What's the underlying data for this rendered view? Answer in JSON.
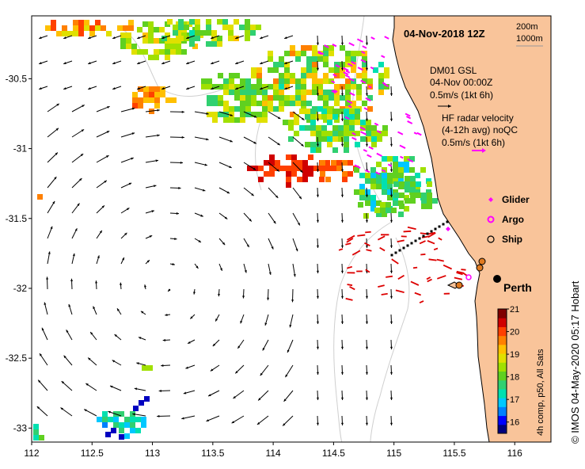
{
  "header": {
    "date_label": "04-Nov-2018 12Z"
  },
  "depth_legend": {
    "contour_1": "200m",
    "contour_2": "1000m"
  },
  "model_info": {
    "line1": "DM01 GSL",
    "line2": "04-Nov 00:00Z",
    "line3": "0.5m/s (1kt 6h)"
  },
  "hf_info": {
    "line1": "HF radar velocity",
    "line2": "(4-12h avg) noQC",
    "line3": "0.5m/s (1kt 6h)"
  },
  "platform_legend": {
    "items": [
      {
        "label": "Glider",
        "symbol": "diamond",
        "color": "#ff00ff"
      },
      {
        "label": "Argo",
        "symbol": "hollow-circle",
        "color": "#ff00ff"
      },
      {
        "label": "Ship",
        "symbol": "circle",
        "color": "#000000"
      }
    ]
  },
  "city_label": "Perth",
  "colorbar": {
    "title": "4h comp, p50, All Sats",
    "ticks": [
      "21",
      "20",
      "19",
      "18",
      "17",
      "16"
    ],
    "min": 15.5,
    "max": 21,
    "colors": [
      "#00007f",
      "#0000ff",
      "#0080ff",
      "#00c8ff",
      "#00e0b0",
      "#30d070",
      "#60d020",
      "#a0e000",
      "#e0e000",
      "#ffc000",
      "#ff8000",
      "#ff4000",
      "#d00000",
      "#800000"
    ]
  },
  "credit": "© IMOS 04-May-2020 05:17 Hobart",
  "axes": {
    "x_ticks": [
      "112",
      "112.5",
      "113",
      "113.5",
      "114",
      "114.5",
      "115",
      "115.5",
      "116"
    ],
    "x_values": [
      112,
      112.5,
      113,
      113.5,
      114,
      114.5,
      115,
      115.5,
      116
    ],
    "y_ticks": [
      "-30.5",
      "-31",
      "-31.5",
      "-32",
      "-32.5",
      "-33"
    ],
    "y_values": [
      -30.5,
      -31,
      -31.5,
      -32,
      -32.5,
      -33
    ],
    "lon_range": [
      112,
      116.3
    ],
    "lat_range": [
      -33.1,
      -30.05
    ]
  },
  "colors": {
    "land": "#f9c49a",
    "ocean": "#ffffff",
    "model_arrow": "#000000",
    "hf_arrow": "#ff00ff",
    "red_arrow": "#dd0000",
    "argo": "#ff00ff",
    "ship_marker": "#e07a20"
  }
}
